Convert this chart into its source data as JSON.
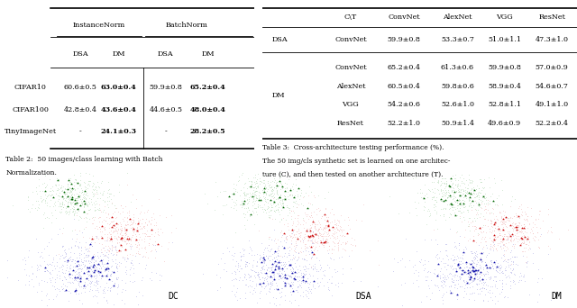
{
  "table2": {
    "rows": [
      [
        "CIFAR10",
        "60.6±0.5",
        "63.0±0.4",
        "59.9±0.8",
        "65.2±0.4"
      ],
      [
        "CIFAR100",
        "42.8±0.4",
        "43.6±0.4",
        "44.6±0.5",
        "48.0±0.4"
      ],
      [
        "TinyImageNet",
        "-",
        "24.1±0.3",
        "-",
        "28.2±0.5"
      ]
    ],
    "caption_line1": "Table 2:  50 images/class learning with Batch",
    "caption_line2": "Normalization."
  },
  "table3": {
    "col_headers": [
      "C\\T",
      "ConvNet",
      "AlexNet",
      "VGG",
      "ResNet"
    ],
    "dsa_row": [
      "ConvNet",
      "59.9±0.8",
      "53.3±0.7",
      "51.0±1.1",
      "47.3±1.0"
    ],
    "dm_rows": [
      [
        "ConvNet",
        "65.2±0.4",
        "61.3±0.6",
        "59.9±0.8",
        "57.0±0.9"
      ],
      [
        "AlexNet",
        "60.5±0.4",
        "59.8±0.6",
        "58.9±0.4",
        "54.6±0.7"
      ],
      [
        "VGG",
        "54.2±0.6",
        "52.6±1.0",
        "52.8±1.1",
        "49.1±1.0"
      ],
      [
        "ResNet",
        "52.2±1.0",
        "50.9±1.4",
        "49.6±0.9",
        "52.2±0.4"
      ]
    ],
    "caption_line1": "Table 3:  Cross-architecture testing performance (%).",
    "caption_line2": "The 50 img/cls synthetic set is learned on one architec-",
    "caption_line3": "ture (C), and then tested on another architecture (T)."
  },
  "plots": {
    "labels": [
      "DC",
      "DSA",
      "DM"
    ],
    "green_small": "#aad4aa",
    "green_large": "#006600",
    "red_small": "#f0b0b0",
    "red_large": "#cc1111",
    "blue_small": "#a0a0e0",
    "blue_large": "#1111aa",
    "seed": 7
  }
}
